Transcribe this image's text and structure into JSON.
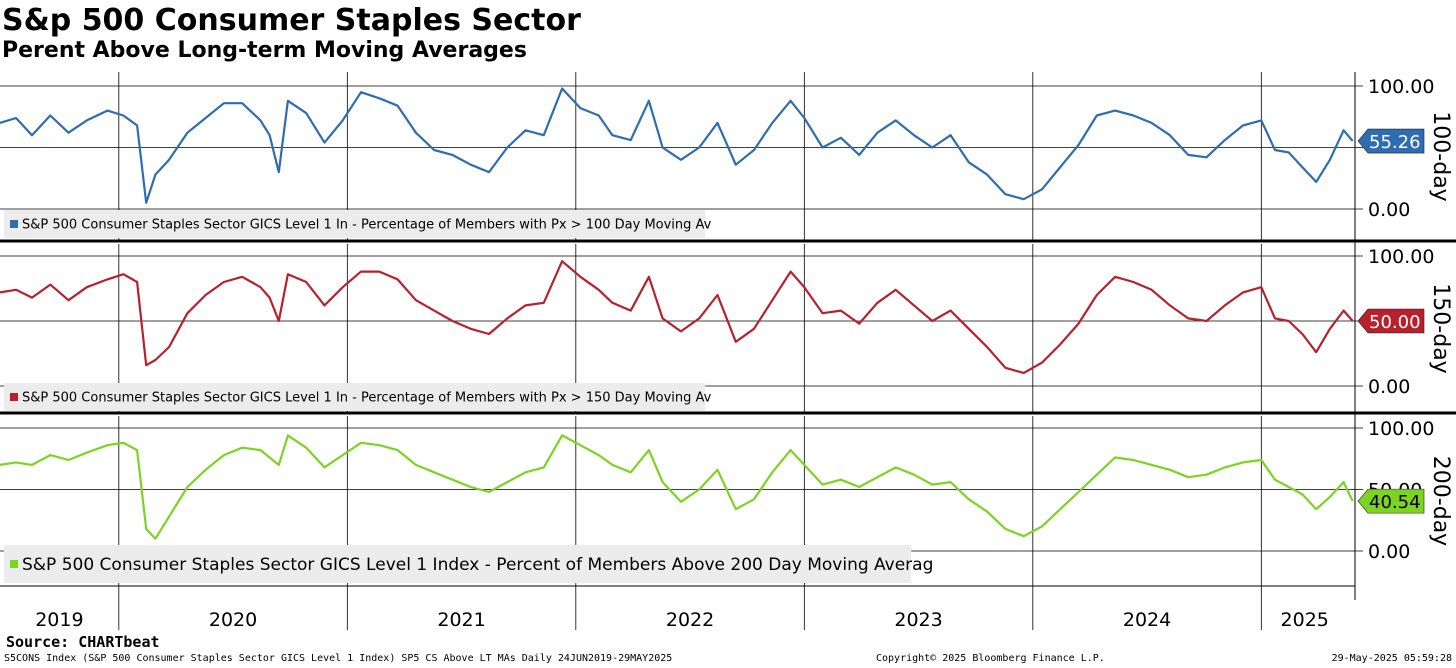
{
  "header": {
    "title": "S&p 500 Consumer Staples Sector",
    "subtitle": "Perent Above Long-term Moving Averages"
  },
  "footer": {
    "source": "Source: CHARTbeat",
    "index_info": "S5CONS Index (S&P 500 Consumer Staples Sector GICS Level 1 Index) SP5 CS Above LT MAs  Daily 24JUN2019-29MAY2025",
    "copyright": "Copyright© 2025 Bloomberg Finance L.P.",
    "timestamp": "29-May-2025 05:59:28"
  },
  "chart_data": {
    "type": "line",
    "x_range": [
      2019.48,
      2025.41
    ],
    "year_labels": [
      {
        "label": "2019",
        "x": 2019.74
      },
      {
        "label": "2020",
        "x": 2020.5
      },
      {
        "label": "2021",
        "x": 2021.5
      },
      {
        "label": "2022",
        "x": 2022.5
      },
      {
        "label": "2023",
        "x": 2023.5
      },
      {
        "label": "2024",
        "x": 2024.5
      },
      {
        "label": "2025",
        "x": 2025.19
      }
    ],
    "panels": [
      {
        "name": "100-day",
        "axis_label": "100-day",
        "color": "#2e6db0",
        "legend": "S&P 500 Consumer Staples Sector GICS Level 1 In - Percentage of Members with Px > 100 Day Moving Av",
        "last_value": 55.26,
        "last_label": "55.26",
        "ylim": [
          -25,
          105
        ],
        "ticks": [
          "100.00",
          "0.00"
        ],
        "series": [
          [
            2019.48,
            70
          ],
          [
            2019.55,
            74
          ],
          [
            2019.62,
            60
          ],
          [
            2019.7,
            76
          ],
          [
            2019.78,
            62
          ],
          [
            2019.86,
            72
          ],
          [
            2019.95,
            80
          ],
          [
            2020.02,
            76
          ],
          [
            2020.08,
            68
          ],
          [
            2020.12,
            5
          ],
          [
            2020.16,
            28
          ],
          [
            2020.22,
            40
          ],
          [
            2020.3,
            62
          ],
          [
            2020.38,
            74
          ],
          [
            2020.46,
            86
          ],
          [
            2020.54,
            86
          ],
          [
            2020.62,
            72
          ],
          [
            2020.66,
            60
          ],
          [
            2020.7,
            30
          ],
          [
            2020.74,
            88
          ],
          [
            2020.82,
            78
          ],
          [
            2020.9,
            54
          ],
          [
            2020.98,
            72
          ],
          [
            2021.06,
            95
          ],
          [
            2021.14,
            90
          ],
          [
            2021.22,
            84
          ],
          [
            2021.3,
            62
          ],
          [
            2021.38,
            48
          ],
          [
            2021.46,
            44
          ],
          [
            2021.54,
            36
          ],
          [
            2021.62,
            30
          ],
          [
            2021.7,
            50
          ],
          [
            2021.78,
            64
          ],
          [
            2021.86,
            60
          ],
          [
            2021.94,
            98
          ],
          [
            2022.02,
            82
          ],
          [
            2022.1,
            76
          ],
          [
            2022.16,
            60
          ],
          [
            2022.24,
            56
          ],
          [
            2022.32,
            88
          ],
          [
            2022.38,
            50
          ],
          [
            2022.46,
            40
          ],
          [
            2022.54,
            50
          ],
          [
            2022.62,
            70
          ],
          [
            2022.7,
            36
          ],
          [
            2022.78,
            48
          ],
          [
            2022.86,
            70
          ],
          [
            2022.94,
            88
          ],
          [
            2023.0,
            74
          ],
          [
            2023.08,
            50
          ],
          [
            2023.16,
            58
          ],
          [
            2023.24,
            44
          ],
          [
            2023.32,
            62
          ],
          [
            2023.4,
            72
          ],
          [
            2023.48,
            60
          ],
          [
            2023.56,
            50
          ],
          [
            2023.64,
            60
          ],
          [
            2023.72,
            38
          ],
          [
            2023.8,
            28
          ],
          [
            2023.88,
            12
          ],
          [
            2023.96,
            8
          ],
          [
            2024.04,
            16
          ],
          [
            2024.12,
            34
          ],
          [
            2024.2,
            52
          ],
          [
            2024.28,
            76
          ],
          [
            2024.36,
            80
          ],
          [
            2024.44,
            76
          ],
          [
            2024.52,
            70
          ],
          [
            2024.6,
            60
          ],
          [
            2024.68,
            44
          ],
          [
            2024.76,
            42
          ],
          [
            2024.84,
            56
          ],
          [
            2024.92,
            68
          ],
          [
            2025.0,
            72
          ],
          [
            2025.06,
            48
          ],
          [
            2025.12,
            46
          ],
          [
            2025.18,
            34
          ],
          [
            2025.24,
            22
          ],
          [
            2025.3,
            40
          ],
          [
            2025.36,
            64
          ],
          [
            2025.4,
            55.26
          ]
        ]
      },
      {
        "name": "150-day",
        "axis_label": "150-day",
        "color": "#b8202e",
        "legend": "S&P 500 Consumer Staples Sector GICS Level 1 In - Percentage of Members with Px > 150 Day Moving Av",
        "last_value": 50.0,
        "last_label": "50.00",
        "ylim": [
          -25,
          105
        ],
        "ticks": [
          "100.00",
          "0.00"
        ],
        "series": [
          [
            2019.48,
            72
          ],
          [
            2019.55,
            74
          ],
          [
            2019.62,
            68
          ],
          [
            2019.7,
            78
          ],
          [
            2019.78,
            66
          ],
          [
            2019.86,
            76
          ],
          [
            2019.95,
            82
          ],
          [
            2020.02,
            86
          ],
          [
            2020.08,
            80
          ],
          [
            2020.12,
            16
          ],
          [
            2020.16,
            20
          ],
          [
            2020.22,
            30
          ],
          [
            2020.3,
            56
          ],
          [
            2020.38,
            70
          ],
          [
            2020.46,
            80
          ],
          [
            2020.54,
            84
          ],
          [
            2020.62,
            76
          ],
          [
            2020.66,
            68
          ],
          [
            2020.7,
            50
          ],
          [
            2020.74,
            86
          ],
          [
            2020.82,
            80
          ],
          [
            2020.9,
            62
          ],
          [
            2020.98,
            76
          ],
          [
            2021.06,
            88
          ],
          [
            2021.14,
            88
          ],
          [
            2021.22,
            82
          ],
          [
            2021.3,
            66
          ],
          [
            2021.38,
            58
          ],
          [
            2021.46,
            50
          ],
          [
            2021.54,
            44
          ],
          [
            2021.62,
            40
          ],
          [
            2021.7,
            52
          ],
          [
            2021.78,
            62
          ],
          [
            2021.86,
            64
          ],
          [
            2021.94,
            96
          ],
          [
            2022.02,
            84
          ],
          [
            2022.1,
            74
          ],
          [
            2022.16,
            64
          ],
          [
            2022.24,
            58
          ],
          [
            2022.32,
            84
          ],
          [
            2022.38,
            52
          ],
          [
            2022.46,
            42
          ],
          [
            2022.54,
            52
          ],
          [
            2022.62,
            70
          ],
          [
            2022.7,
            34
          ],
          [
            2022.78,
            44
          ],
          [
            2022.86,
            66
          ],
          [
            2022.94,
            88
          ],
          [
            2023.0,
            76
          ],
          [
            2023.08,
            56
          ],
          [
            2023.16,
            58
          ],
          [
            2023.24,
            48
          ],
          [
            2023.32,
            64
          ],
          [
            2023.4,
            74
          ],
          [
            2023.48,
            62
          ],
          [
            2023.56,
            50
          ],
          [
            2023.64,
            58
          ],
          [
            2023.72,
            44
          ],
          [
            2023.8,
            30
          ],
          [
            2023.88,
            14
          ],
          [
            2023.96,
            10
          ],
          [
            2024.04,
            18
          ],
          [
            2024.12,
            32
          ],
          [
            2024.2,
            48
          ],
          [
            2024.28,
            70
          ],
          [
            2024.36,
            84
          ],
          [
            2024.44,
            80
          ],
          [
            2024.52,
            74
          ],
          [
            2024.6,
            62
          ],
          [
            2024.68,
            52
          ],
          [
            2024.76,
            50
          ],
          [
            2024.84,
            62
          ],
          [
            2024.92,
            72
          ],
          [
            2025.0,
            76
          ],
          [
            2025.06,
            52
          ],
          [
            2025.12,
            50
          ],
          [
            2025.18,
            40
          ],
          [
            2025.24,
            26
          ],
          [
            2025.3,
            44
          ],
          [
            2025.36,
            58
          ],
          [
            2025.4,
            50.0
          ]
        ]
      },
      {
        "name": "200-day",
        "axis_label": "200-day",
        "color": "#7dd321",
        "legend": "S&P 500 Consumer Staples Sector GICS Level 1 Index - Percent of Members Above 200 Day Moving Averag",
        "last_value": 40.54,
        "last_label": "40.54",
        "ylim": [
          -25,
          105
        ],
        "ticks": [
          "100.00",
          "50.00",
          "0.00"
        ],
        "series": [
          [
            2019.48,
            70
          ],
          [
            2019.55,
            72
          ],
          [
            2019.62,
            70
          ],
          [
            2019.7,
            78
          ],
          [
            2019.78,
            74
          ],
          [
            2019.86,
            80
          ],
          [
            2019.95,
            86
          ],
          [
            2020.02,
            88
          ],
          [
            2020.08,
            82
          ],
          [
            2020.12,
            18
          ],
          [
            2020.16,
            10
          ],
          [
            2020.22,
            28
          ],
          [
            2020.3,
            52
          ],
          [
            2020.38,
            66
          ],
          [
            2020.46,
            78
          ],
          [
            2020.54,
            84
          ],
          [
            2020.62,
            82
          ],
          [
            2020.66,
            76
          ],
          [
            2020.7,
            70
          ],
          [
            2020.74,
            94
          ],
          [
            2020.82,
            84
          ],
          [
            2020.9,
            68
          ],
          [
            2020.98,
            78
          ],
          [
            2021.06,
            88
          ],
          [
            2021.14,
            86
          ],
          [
            2021.22,
            82
          ],
          [
            2021.3,
            70
          ],
          [
            2021.38,
            64
          ],
          [
            2021.46,
            58
          ],
          [
            2021.54,
            52
          ],
          [
            2021.62,
            48
          ],
          [
            2021.7,
            56
          ],
          [
            2021.78,
            64
          ],
          [
            2021.86,
            68
          ],
          [
            2021.94,
            94
          ],
          [
            2022.02,
            86
          ],
          [
            2022.1,
            78
          ],
          [
            2022.16,
            70
          ],
          [
            2022.24,
            64
          ],
          [
            2022.32,
            82
          ],
          [
            2022.38,
            56
          ],
          [
            2022.46,
            40
          ],
          [
            2022.54,
            50
          ],
          [
            2022.62,
            66
          ],
          [
            2022.7,
            34
          ],
          [
            2022.78,
            42
          ],
          [
            2022.86,
            64
          ],
          [
            2022.94,
            82
          ],
          [
            2023.0,
            70
          ],
          [
            2023.08,
            54
          ],
          [
            2023.16,
            58
          ],
          [
            2023.24,
            52
          ],
          [
            2023.32,
            60
          ],
          [
            2023.4,
            68
          ],
          [
            2023.48,
            62
          ],
          [
            2023.56,
            54
          ],
          [
            2023.64,
            56
          ],
          [
            2023.72,
            42
          ],
          [
            2023.8,
            32
          ],
          [
            2023.88,
            18
          ],
          [
            2023.96,
            12
          ],
          [
            2024.04,
            20
          ],
          [
            2024.12,
            34
          ],
          [
            2024.2,
            48
          ],
          [
            2024.28,
            62
          ],
          [
            2024.36,
            76
          ],
          [
            2024.44,
            74
          ],
          [
            2024.52,
            70
          ],
          [
            2024.6,
            66
          ],
          [
            2024.68,
            60
          ],
          [
            2024.76,
            62
          ],
          [
            2024.84,
            68
          ],
          [
            2024.92,
            72
          ],
          [
            2025.0,
            74
          ],
          [
            2025.06,
            58
          ],
          [
            2025.12,
            52
          ],
          [
            2025.18,
            46
          ],
          [
            2025.24,
            34
          ],
          [
            2025.3,
            44
          ],
          [
            2025.36,
            56
          ],
          [
            2025.4,
            40.54
          ]
        ]
      }
    ]
  }
}
